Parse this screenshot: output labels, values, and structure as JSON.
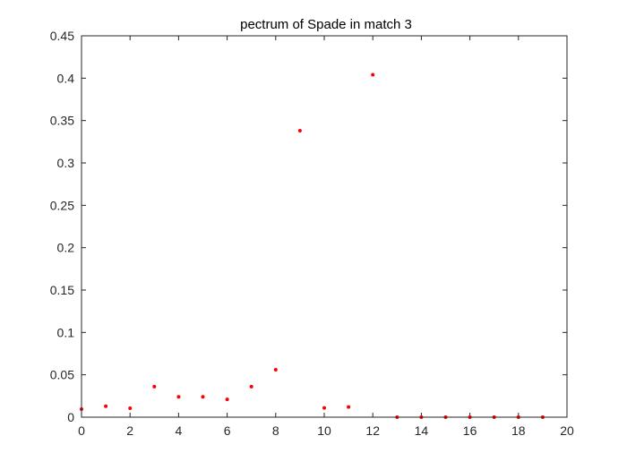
{
  "chart_data": {
    "type": "scatter",
    "title": "pectrum of Spade in match 3",
    "xlabel": "",
    "ylabel": "",
    "xlim": [
      0,
      20
    ],
    "ylim": [
      0,
      0.45
    ],
    "x_ticks": [
      0,
      2,
      4,
      6,
      8,
      10,
      12,
      14,
      16,
      18,
      20
    ],
    "x_tick_labels": [
      "0",
      "2",
      "4",
      "6",
      "8",
      "10",
      "12",
      "14",
      "16",
      "18",
      "20"
    ],
    "y_ticks": [
      0,
      0.05,
      0.1,
      0.15,
      0.2,
      0.25,
      0.3,
      0.35,
      0.4,
      0.45
    ],
    "y_tick_labels": [
      "0",
      "0.05",
      "0.1",
      "0.15",
      "0.2",
      "0.25",
      "0.3",
      "0.35",
      "0.4",
      "0.45"
    ],
    "grid": false,
    "box": true,
    "marker_color": "#ff0000",
    "axis_color": "#262626",
    "series": [
      {
        "x": [
          0,
          1,
          2,
          3,
          4,
          5,
          6,
          7,
          8,
          9,
          10,
          11,
          12,
          13,
          14,
          15,
          16,
          17,
          18,
          19
        ],
        "y": [
          0.0095,
          0.013,
          0.0105,
          0.036,
          0.024,
          0.024,
          0.021,
          0.036,
          0.056,
          0.338,
          0.011,
          0.012,
          0.404,
          0.0,
          0.0,
          0.0,
          0.0,
          0.0,
          0.0,
          0.0
        ]
      }
    ]
  }
}
